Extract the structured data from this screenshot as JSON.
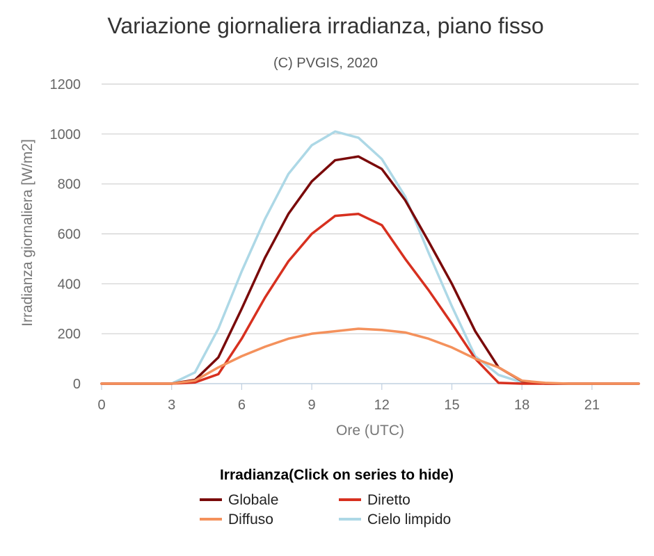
{
  "chart_data": {
    "type": "line",
    "title": "Variazione giornaliera irradianza, piano fisso",
    "subtitle": "(C) PVGIS, 2020",
    "xlabel": "Ore (UTC)",
    "ylabel": "Irradianza giornaliera [W/m2]",
    "xlim": [
      0,
      23
    ],
    "ylim": [
      0,
      1200
    ],
    "x_ticks": [
      0,
      3,
      6,
      9,
      12,
      15,
      18,
      21
    ],
    "y_ticks": [
      0,
      200,
      400,
      600,
      800,
      1000,
      1200
    ],
    "grid": true,
    "legend_title": "Irradianza(Click on series to hide)",
    "legend_position": "bottom",
    "x": [
      0,
      1,
      2,
      3,
      4,
      5,
      6,
      7,
      8,
      9,
      10,
      11,
      12,
      13,
      14,
      15,
      16,
      17,
      18,
      19,
      20,
      21,
      22,
      23
    ],
    "series": [
      {
        "name": "Globale",
        "color": "#7a0a0a",
        "values": [
          0,
          0,
          0,
          0,
          15,
          105,
          300,
          505,
          680,
          810,
          895,
          910,
          860,
          735,
          570,
          400,
          210,
          65,
          10,
          0,
          0,
          0,
          0,
          0
        ]
      },
      {
        "name": "Diretto",
        "color": "#d7301f",
        "values": [
          0,
          0,
          0,
          0,
          5,
          38,
          180,
          345,
          490,
          600,
          672,
          680,
          635,
          500,
          375,
          240,
          100,
          3,
          0,
          0,
          0,
          0,
          0,
          0
        ]
      },
      {
        "name": "Diffuso",
        "color": "#f4915c",
        "values": [
          0,
          0,
          0,
          0,
          12,
          65,
          110,
          148,
          180,
          200,
          210,
          220,
          215,
          205,
          180,
          145,
          100,
          65,
          12,
          3,
          0,
          0,
          0,
          0
        ]
      },
      {
        "name": "Cielo limpido",
        "color": "#add8e6",
        "values": [
          0,
          0,
          0,
          0,
          45,
          220,
          450,
          660,
          840,
          955,
          1010,
          985,
          900,
          750,
          525,
          310,
          110,
          35,
          5,
          0,
          0,
          0,
          0,
          0
        ]
      }
    ]
  }
}
